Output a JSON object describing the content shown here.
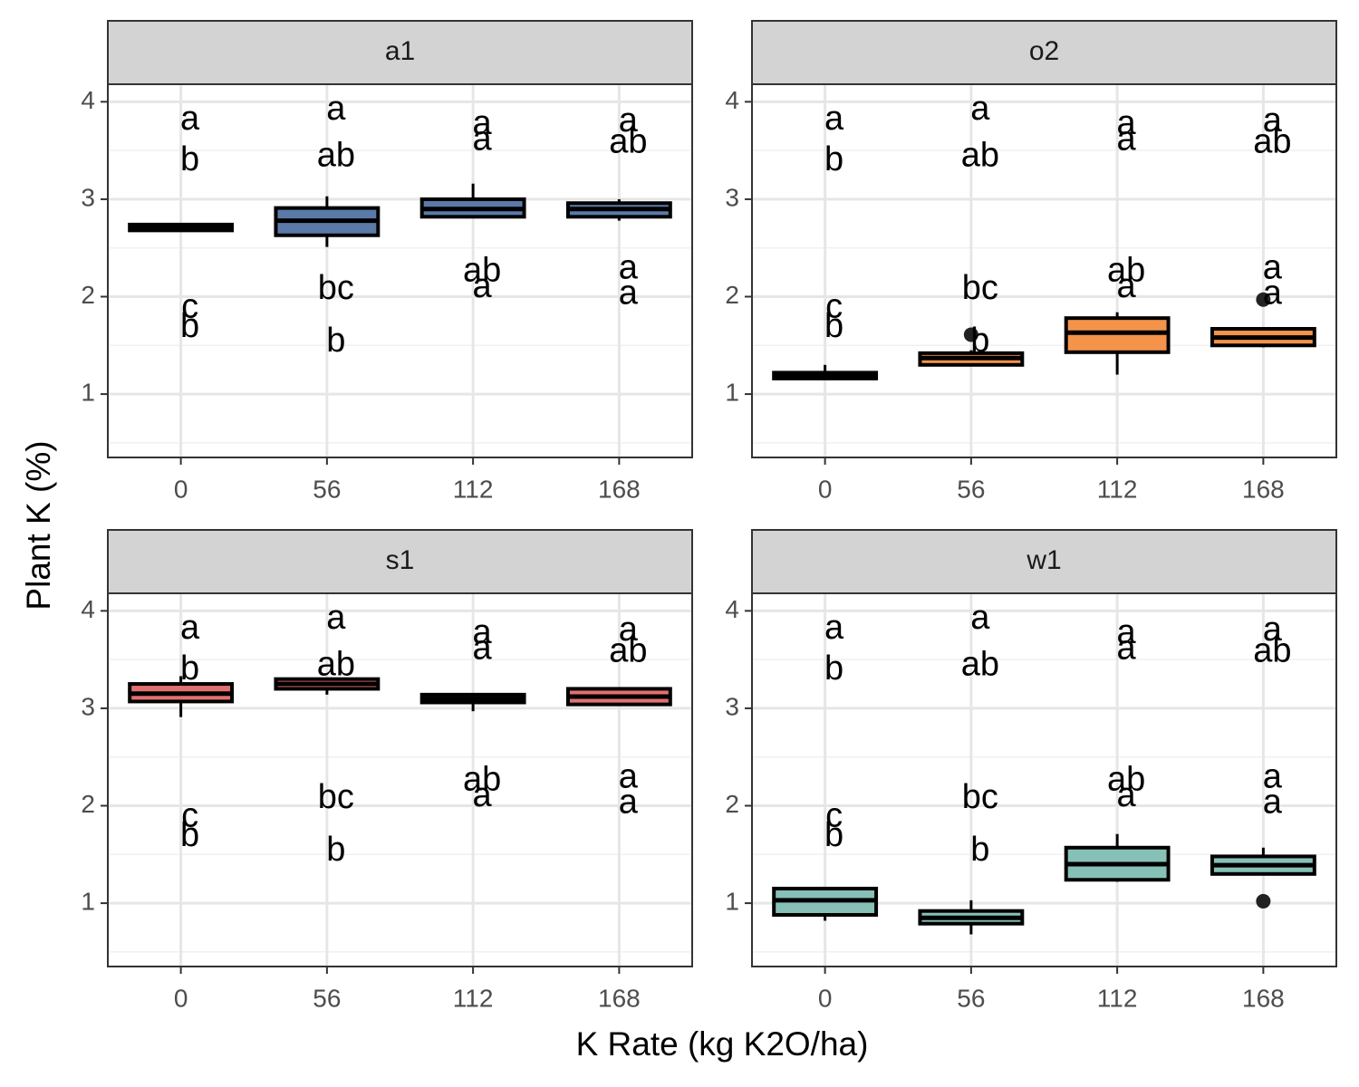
{
  "xlabel": "K Rate (kg K2O/ha)",
  "ylabel": "Plant K (%)",
  "chart_data": [
    {
      "type": "box",
      "title": "a1",
      "color": "#5b7aa8",
      "categories": [
        "0",
        "56",
        "112",
        "168"
      ],
      "ylim": [
        0.35,
        4.18
      ],
      "yticks": [
        1,
        2,
        3,
        4
      ],
      "minor_yticks": [
        0.5,
        1.5,
        2.5,
        3.5
      ],
      "grid": true,
      "boxes": [
        {
          "min": 2.67,
          "q1": 2.68,
          "median": 2.71,
          "q3": 2.74,
          "max": 2.75,
          "outliers": []
        },
        {
          "min": 2.51,
          "q1": 2.63,
          "median": 2.78,
          "q3": 2.91,
          "max": 3.03,
          "outliers": []
        },
        {
          "min": 2.82,
          "q1": 2.82,
          "median": 2.9,
          "q3": 3.0,
          "max": 3.16,
          "outliers": []
        },
        {
          "min": 2.78,
          "q1": 2.82,
          "median": 2.9,
          "q3": 2.96,
          "max": 3.0,
          "outliers": []
        }
      ],
      "annotations": [
        {
          "label": "a",
          "category": 0,
          "y": 3.81
        },
        {
          "label": "b",
          "category": 0,
          "y": 3.39
        },
        {
          "label": "c",
          "category": 0,
          "y": 1.88
        },
        {
          "label": "b",
          "category": 0,
          "y": 1.68
        },
        {
          "label": "a",
          "category": 1,
          "y": 3.91
        },
        {
          "label": "ab",
          "category": 1,
          "y": 3.43
        },
        {
          "label": "bc",
          "category": 1,
          "y": 2.07
        },
        {
          "label": "b",
          "category": 1,
          "y": 1.53
        },
        {
          "label": "a",
          "category": 2,
          "y": 3.76
        },
        {
          "label": "a",
          "category": 2,
          "y": 3.6
        },
        {
          "label": "ab",
          "category": 2,
          "y": 2.25
        },
        {
          "label": "a",
          "category": 2,
          "y": 2.09
        },
        {
          "label": "a",
          "category": 3,
          "y": 3.79
        },
        {
          "label": "ab",
          "category": 3,
          "y": 3.57
        },
        {
          "label": "a",
          "category": 3,
          "y": 2.28
        },
        {
          "label": "a",
          "category": 3,
          "y": 2.02
        }
      ]
    },
    {
      "type": "box",
      "title": "o2",
      "color": "#f4934a",
      "categories": [
        "0",
        "56",
        "112",
        "168"
      ],
      "ylim": [
        0.35,
        4.18
      ],
      "yticks": [
        1,
        2,
        3,
        4
      ],
      "minor_yticks": [
        0.5,
        1.5,
        2.5,
        3.5
      ],
      "grid": true,
      "boxes": [
        {
          "min": 1.15,
          "q1": 1.16,
          "median": 1.19,
          "q3": 1.22,
          "max": 1.3,
          "outliers": []
        },
        {
          "min": 1.29,
          "q1": 1.3,
          "median": 1.37,
          "q3": 1.42,
          "max": 1.45,
          "outliers": [
            1.61
          ]
        },
        {
          "min": 1.2,
          "q1": 1.43,
          "median": 1.63,
          "q3": 1.78,
          "max": 1.84,
          "outliers": []
        },
        {
          "min": 1.48,
          "q1": 1.5,
          "median": 1.58,
          "q3": 1.67,
          "max": 1.67,
          "outliers": [
            1.97
          ]
        }
      ],
      "annotations": [
        {
          "label": "a",
          "category": 0,
          "y": 3.81
        },
        {
          "label": "b",
          "category": 0,
          "y": 3.39
        },
        {
          "label": "c",
          "category": 0,
          "y": 1.88
        },
        {
          "label": "b",
          "category": 0,
          "y": 1.68
        },
        {
          "label": "a",
          "category": 1,
          "y": 3.91
        },
        {
          "label": "ab",
          "category": 1,
          "y": 3.43
        },
        {
          "label": "bc",
          "category": 1,
          "y": 2.07
        },
        {
          "label": "b",
          "category": 1,
          "y": 1.53
        },
        {
          "label": "a",
          "category": 2,
          "y": 3.76
        },
        {
          "label": "a",
          "category": 2,
          "y": 3.6
        },
        {
          "label": "ab",
          "category": 2,
          "y": 2.25
        },
        {
          "label": "a",
          "category": 2,
          "y": 2.09
        },
        {
          "label": "a",
          "category": 3,
          "y": 3.79
        },
        {
          "label": "ab",
          "category": 3,
          "y": 3.57
        },
        {
          "label": "a",
          "category": 3,
          "y": 2.28
        },
        {
          "label": "a",
          "category": 3,
          "y": 2.02
        }
      ]
    },
    {
      "type": "box",
      "title": "s1",
      "color": "#e27070",
      "categories": [
        "0",
        "56",
        "112",
        "168"
      ],
      "ylim": [
        0.35,
        4.18
      ],
      "yticks": [
        1,
        2,
        3,
        4
      ],
      "minor_yticks": [
        0.5,
        1.5,
        2.5,
        3.5
      ],
      "grid": true,
      "boxes": [
        {
          "min": 2.91,
          "q1": 3.07,
          "median": 3.15,
          "q3": 3.25,
          "max": 3.33,
          "outliers": []
        },
        {
          "min": 3.14,
          "q1": 3.2,
          "median": 3.25,
          "q3": 3.3,
          "max": 3.3,
          "outliers": []
        },
        {
          "min": 2.97,
          "q1": 3.06,
          "median": 3.1,
          "q3": 3.14,
          "max": 3.14,
          "outliers": []
        },
        {
          "min": 3.03,
          "q1": 3.04,
          "median": 3.12,
          "q3": 3.2,
          "max": 3.2,
          "outliers": []
        }
      ],
      "annotations": [
        {
          "label": "a",
          "category": 0,
          "y": 3.81
        },
        {
          "label": "b",
          "category": 0,
          "y": 3.39
        },
        {
          "label": "c",
          "category": 0,
          "y": 1.88
        },
        {
          "label": "b",
          "category": 0,
          "y": 1.68
        },
        {
          "label": "a",
          "category": 1,
          "y": 3.91
        },
        {
          "label": "ab",
          "category": 1,
          "y": 3.43
        },
        {
          "label": "bc",
          "category": 1,
          "y": 2.07
        },
        {
          "label": "b",
          "category": 1,
          "y": 1.53
        },
        {
          "label": "a",
          "category": 2,
          "y": 3.76
        },
        {
          "label": "a",
          "category": 2,
          "y": 3.6
        },
        {
          "label": "ab",
          "category": 2,
          "y": 2.25
        },
        {
          "label": "a",
          "category": 2,
          "y": 2.09
        },
        {
          "label": "a",
          "category": 3,
          "y": 3.79
        },
        {
          "label": "ab",
          "category": 3,
          "y": 3.57
        },
        {
          "label": "a",
          "category": 3,
          "y": 2.28
        },
        {
          "label": "a",
          "category": 3,
          "y": 2.02
        }
      ]
    },
    {
      "type": "box",
      "title": "w1",
      "color": "#86c0b6",
      "categories": [
        "0",
        "56",
        "112",
        "168"
      ],
      "ylim": [
        0.35,
        4.18
      ],
      "yticks": [
        1,
        2,
        3,
        4
      ],
      "minor_yticks": [
        0.5,
        1.5,
        2.5,
        3.5
      ],
      "grid": true,
      "boxes": [
        {
          "min": 0.82,
          "q1": 0.88,
          "median": 1.03,
          "q3": 1.15,
          "max": 1.15,
          "outliers": []
        },
        {
          "min": 0.68,
          "q1": 0.79,
          "median": 0.85,
          "q3": 0.92,
          "max": 1.03,
          "outliers": []
        },
        {
          "min": 1.22,
          "q1": 1.24,
          "median": 1.4,
          "q3": 1.57,
          "max": 1.71,
          "outliers": []
        },
        {
          "min": 1.3,
          "q1": 1.3,
          "median": 1.39,
          "q3": 1.48,
          "max": 1.57,
          "outliers": [
            1.02
          ]
        }
      ],
      "annotations": [
        {
          "label": "a",
          "category": 0,
          "y": 3.81
        },
        {
          "label": "b",
          "category": 0,
          "y": 3.39
        },
        {
          "label": "c",
          "category": 0,
          "y": 1.88
        },
        {
          "label": "b",
          "category": 0,
          "y": 1.68
        },
        {
          "label": "a",
          "category": 1,
          "y": 3.91
        },
        {
          "label": "ab",
          "category": 1,
          "y": 3.43
        },
        {
          "label": "bc",
          "category": 1,
          "y": 2.07
        },
        {
          "label": "b",
          "category": 1,
          "y": 1.53
        },
        {
          "label": "a",
          "category": 2,
          "y": 3.76
        },
        {
          "label": "a",
          "category": 2,
          "y": 3.6
        },
        {
          "label": "ab",
          "category": 2,
          "y": 2.25
        },
        {
          "label": "a",
          "category": 2,
          "y": 2.09
        },
        {
          "label": "a",
          "category": 3,
          "y": 3.79
        },
        {
          "label": "ab",
          "category": 3,
          "y": 3.57
        },
        {
          "label": "a",
          "category": 3,
          "y": 2.28
        },
        {
          "label": "a",
          "category": 3,
          "y": 2.02
        }
      ]
    }
  ]
}
